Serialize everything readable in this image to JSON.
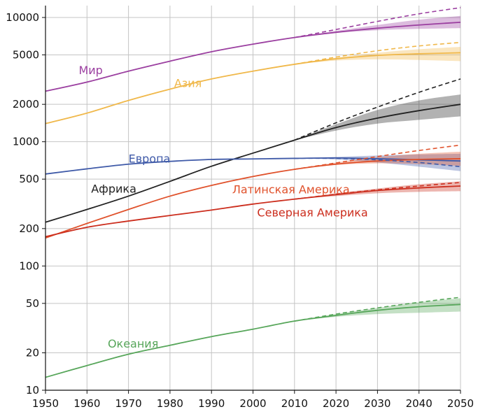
{
  "chart_data": {
    "type": "line",
    "title": "",
    "xlabel": "",
    "ylabel": "",
    "xlim": [
      1950,
      2050
    ],
    "ylim": [
      10,
      12000
    ],
    "yscale": "log",
    "grid": true,
    "x_ticks": [
      1950,
      1960,
      1970,
      1980,
      1990,
      2000,
      2010,
      2020,
      2030,
      2040,
      2050
    ],
    "x_tick_labels": [
      "1950",
      "1960",
      "1970",
      "1980",
      "1990",
      "2000",
      "2010",
      "2020",
      "2030",
      "2040",
      "2050"
    ],
    "y_ticks": [
      10,
      20,
      50,
      100,
      200,
      500,
      1000,
      2000,
      5000,
      10000
    ],
    "y_tick_labels": [
      "10",
      "20",
      "50",
      "100",
      "200",
      "500",
      "1000",
      "2000",
      "5000",
      "10000"
    ],
    "series": [
      {
        "name": "Мир",
        "color": "#9b3fa0",
        "label": {
          "x": 1958,
          "y": 3500
        },
        "x": [
          1950,
          1960,
          1970,
          1980,
          1990,
          2000,
          2010,
          2020,
          2030,
          2040,
          2050
        ],
        "values": [
          2550,
          3020,
          3700,
          4450,
          5300,
          6100,
          6900,
          7600,
          8200,
          8700,
          9150
        ],
        "projection_high": {
          "x": [
            2010,
            2020,
            2030,
            2040,
            2050
          ],
          "values": [
            6900,
            8000,
            9300,
            10700,
            12000
          ]
        },
        "band": {
          "x": [
            2010,
            2020,
            2030,
            2040,
            2050
          ],
          "low": [
            6900,
            7500,
            7900,
            8100,
            8200
          ],
          "high": [
            6900,
            7800,
            8700,
            9600,
            10300
          ]
        }
      },
      {
        "name": "Азия",
        "color": "#f0b84a",
        "label": {
          "x": 1981,
          "y": 2750
        },
        "x": [
          1950,
          1960,
          1970,
          1980,
          1990,
          2000,
          2010,
          2020,
          2030,
          2040,
          2050
        ],
        "values": [
          1400,
          1700,
          2150,
          2650,
          3200,
          3700,
          4200,
          4650,
          4950,
          5100,
          5200
        ],
        "projection_high": {
          "x": [
            2010,
            2020,
            2030,
            2040,
            2050
          ],
          "values": [
            4200,
            4800,
            5400,
            5900,
            6300
          ]
        },
        "band": {
          "x": [
            2010,
            2020,
            2030,
            2040,
            2050
          ],
          "low": [
            4200,
            4500,
            4600,
            4550,
            4450
          ],
          "high": [
            4200,
            4750,
            5200,
            5550,
            5800
          ]
        }
      },
      {
        "name": "Африка",
        "color": "#222222",
        "label": {
          "x": 1961,
          "y": 390
        },
        "x": [
          1950,
          1960,
          1970,
          1980,
          1990,
          2000,
          2010,
          2020,
          2030,
          2040,
          2050
        ],
        "values": [
          225,
          285,
          365,
          480,
          635,
          810,
          1030,
          1300,
          1550,
          1780,
          2000
        ],
        "projection_high": {
          "x": [
            2010,
            2020,
            2030,
            2040,
            2050
          ],
          "values": [
            1030,
            1420,
            1900,
            2500,
            3200
          ]
        },
        "band": {
          "x": [
            2010,
            2020,
            2030,
            2040,
            2050
          ],
          "low": [
            1030,
            1230,
            1400,
            1500,
            1600
          ],
          "high": [
            1030,
            1380,
            1800,
            2150,
            2400
          ]
        }
      },
      {
        "name": "Европа",
        "color": "#3f5aa8",
        "label": {
          "x": 1970,
          "y": 680
        },
        "x": [
          1950,
          1960,
          1970,
          1980,
          1990,
          2000,
          2010,
          2020,
          2030,
          2040,
          2050
        ],
        "values": [
          550,
          605,
          660,
          695,
          720,
          727,
          735,
          740,
          730,
          715,
          700
        ],
        "projection_high": {
          "x": [
            2010,
            2020,
            2030,
            2040,
            2050
          ],
          "values": [
            735,
            735,
            715,
            680,
            630
          ]
        },
        "band": {
          "x": [
            2010,
            2020,
            2030,
            2040,
            2050
          ],
          "low": [
            735,
            720,
            680,
            630,
            580
          ],
          "high": [
            735,
            755,
            775,
            790,
            800
          ]
        }
      },
      {
        "name": "Латинская Америка",
        "color": "#e0522c",
        "label": {
          "x": 1995,
          "y": 385
        },
        "x": [
          1950,
          1960,
          1970,
          1980,
          1990,
          2000,
          2010,
          2020,
          2030,
          2040,
          2050
        ],
        "values": [
          168,
          220,
          285,
          365,
          445,
          525,
          600,
          660,
          700,
          720,
          730
        ],
        "projection_high": {
          "x": [
            2010,
            2020,
            2030,
            2040,
            2050
          ],
          "values": [
            600,
            675,
            760,
            850,
            940
          ]
        },
        "band": {
          "x": [
            2010,
            2020,
            2030,
            2040,
            2050
          ],
          "low": [
            600,
            650,
            670,
            660,
            640
          ],
          "high": [
            600,
            680,
            750,
            800,
            830
          ]
        }
      },
      {
        "name": "Северная Америка",
        "color": "#cc2e1e",
        "label": {
          "x": 2001,
          "y": 250
        },
        "x": [
          1950,
          1960,
          1970,
          1980,
          1990,
          2000,
          2010,
          2020,
          2030,
          2040,
          2050
        ],
        "values": [
          172,
          205,
          230,
          255,
          282,
          315,
          345,
          375,
          405,
          425,
          440
        ],
        "projection_high": {
          "x": [
            2010,
            2020,
            2030,
            2040,
            2050
          ],
          "values": [
            345,
            378,
            410,
            440,
            470
          ]
        },
        "band": {
          "x": [
            2010,
            2020,
            2030,
            2040,
            2050
          ],
          "low": [
            345,
            365,
            385,
            395,
            400
          ],
          "high": [
            345,
            385,
            420,
            455,
            480
          ]
        }
      },
      {
        "name": "Океания",
        "color": "#57a65a",
        "label": {
          "x": 1965,
          "y": 22
        },
        "x": [
          1950,
          1960,
          1970,
          1980,
          1990,
          2000,
          2010,
          2020,
          2030,
          2040,
          2050
        ],
        "values": [
          12.7,
          15.8,
          19.5,
          23,
          27,
          31,
          36,
          40,
          44,
          47,
          49
        ],
        "projection_high": {
          "x": [
            2010,
            2020,
            2030,
            2040,
            2050
          ],
          "values": [
            36,
            41,
            46,
            51,
            56
          ]
        },
        "band": {
          "x": [
            2010,
            2020,
            2030,
            2040,
            2050
          ],
          "low": [
            36,
            39,
            41,
            42,
            43
          ],
          "high": [
            36,
            41,
            46,
            51,
            55
          ]
        }
      }
    ]
  }
}
